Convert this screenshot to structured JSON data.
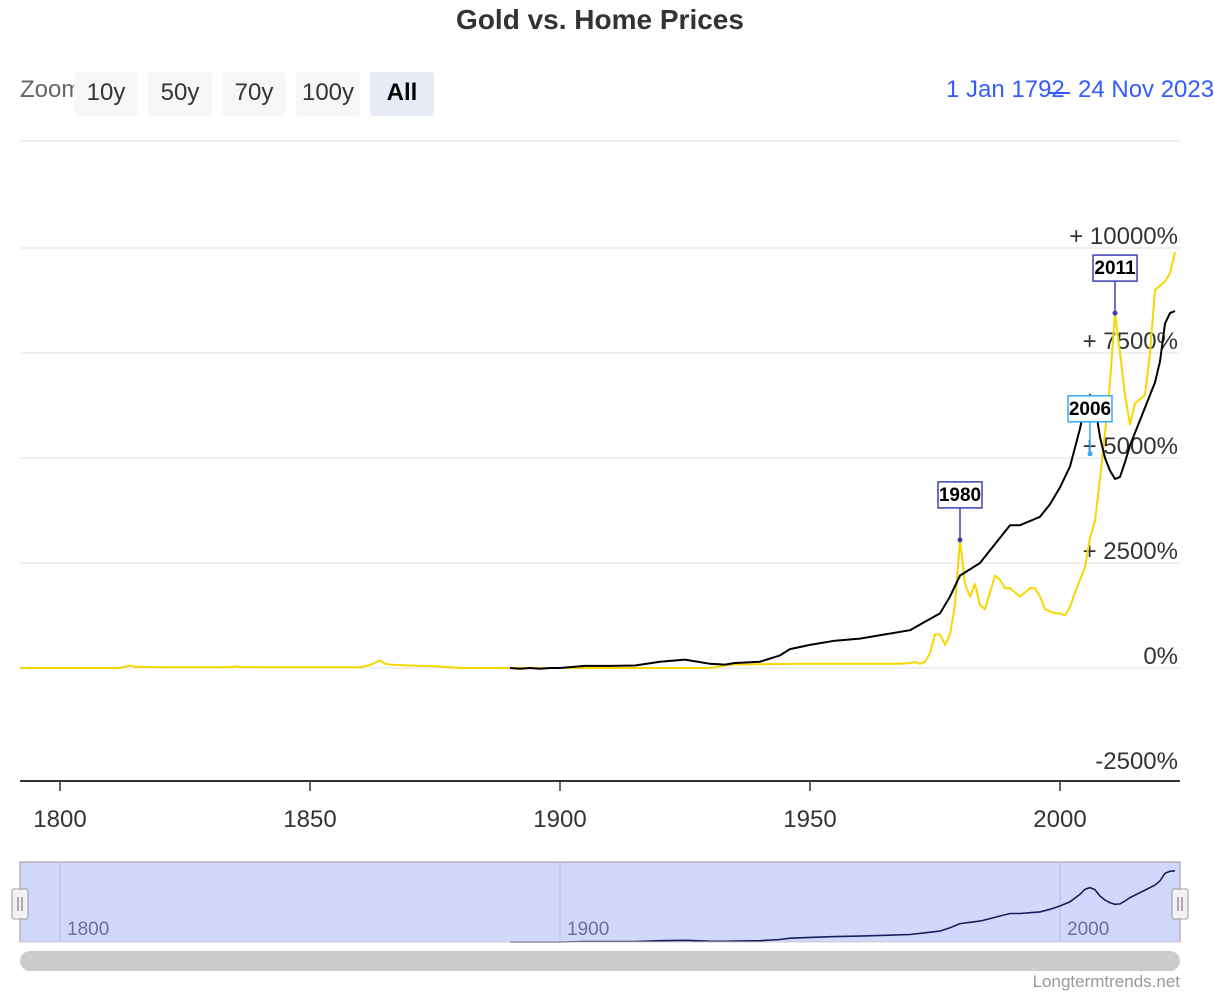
{
  "title": "Gold vs. Home Prices",
  "range_selector": {
    "label": "Zoom",
    "buttons": [
      "10y",
      "50y",
      "70y",
      "100y",
      "All"
    ],
    "selected": "All",
    "from": "1 Jan 1792",
    "to": "24 Nov 2023"
  },
  "credit": "Longtermtrends.net",
  "colors": {
    "gold_series": "#f5d800",
    "home_series": "#000000",
    "flag_dark": "#4040b0",
    "flag_light": "#33aaff",
    "navigator_fill": "#d2d8fc",
    "gridline": "#e0e0e0"
  },
  "chart_data": {
    "type": "line",
    "title": "Gold vs. Home Prices",
    "xlabel": "",
    "ylabel": "",
    "xlim": [
      1792,
      2024
    ],
    "ylim": [
      -2500,
      12500
    ],
    "grid": true,
    "legend": "none",
    "y_ticks": [
      -2500,
      0,
      2500,
      5000,
      7500,
      10000
    ],
    "y_tick_labels": [
      "-2500%",
      "0%",
      "+ 2500%",
      "+ 5000%",
      "+ 7500%",
      "+ 10000%"
    ],
    "x_ticks": [
      "1800",
      "1850",
      "1900",
      "1950",
      "2000"
    ],
    "series": [
      {
        "color": "#f5d800",
        "x": [
          1792,
          1812,
          1813,
          1814,
          1815,
          1820,
          1834,
          1835,
          1836,
          1840,
          1860,
          1862,
          1864,
          1865,
          1866,
          1870,
          1875,
          1879,
          1880,
          1900,
          1930,
          1934,
          1940,
          1950,
          1968,
          1970,
          1971,
          1972,
          1973,
          1974,
          1975,
          1976,
          1977,
          1978,
          1979,
          1980,
          1981,
          1982,
          1983,
          1984,
          1985,
          1986,
          1987,
          1988,
          1989,
          1990,
          1991,
          1992,
          1993,
          1994,
          1995,
          1996,
          1997,
          1998,
          1999,
          2000,
          2001,
          2002,
          2003,
          2004,
          2005,
          2006,
          2007,
          2008,
          2009,
          2010,
          2011,
          2012,
          2013,
          2014,
          2015,
          2016,
          2017,
          2018,
          2019,
          2020,
          2021,
          2022,
          2023
        ],
        "y": [
          0,
          0,
          30,
          60,
          30,
          20,
          20,
          40,
          25,
          20,
          20,
          70,
          180,
          100,
          80,
          60,
          40,
          10,
          0,
          0,
          0,
          80,
          90,
          100,
          100,
          120,
          140,
          100,
          150,
          350,
          800,
          800,
          550,
          800,
          1500,
          3050,
          2000,
          1700,
          2000,
          1500,
          1400,
          1800,
          2200,
          2100,
          1900,
          1900,
          1800,
          1700,
          1800,
          1900,
          1900,
          1700,
          1400,
          1350,
          1300,
          1300,
          1250,
          1450,
          1800,
          2100,
          2400,
          3100,
          3500,
          4500,
          5600,
          6800,
          8450,
          7500,
          6500,
          5800,
          6300,
          6400,
          6500,
          7500,
          9000,
          9100,
          9200,
          9400,
          9900
        ]
      },
      {
        "color": "#000000",
        "x": [
          1890,
          1892,
          1894,
          1896,
          1898,
          1900,
          1905,
          1910,
          1915,
          1920,
          1925,
          1930,
          1933,
          1935,
          1940,
          1944,
          1946,
          1950,
          1955,
          1960,
          1965,
          1970,
          1973,
          1976,
          1978,
          1980,
          1982,
          1984,
          1986,
          1988,
          1990,
          1992,
          1994,
          1996,
          1998,
          2000,
          2002,
          2004,
          2005,
          2006,
          2007,
          2008,
          2009,
          2010,
          2011,
          2012,
          2013,
          2014,
          2015,
          2016,
          2017,
          2018,
          2019,
          2020,
          2021,
          2022,
          2023
        ],
        "y": [
          0,
          -20,
          0,
          -20,
          0,
          0,
          50,
          50,
          60,
          150,
          200,
          100,
          80,
          120,
          150,
          300,
          450,
          550,
          650,
          700,
          800,
          900,
          1100,
          1300,
          1700,
          2200,
          2350,
          2500,
          2800,
          3100,
          3400,
          3400,
          3500,
          3600,
          3900,
          4300,
          4800,
          5700,
          6300,
          6500,
          6250,
          5500,
          5000,
          4700,
          4500,
          4550,
          4900,
          5300,
          5600,
          5900,
          6200,
          6500,
          6800,
          7300,
          8200,
          8450,
          8500
        ]
      }
    ],
    "flags": [
      {
        "label": "1980",
        "x": 1980,
        "y": 3050,
        "color": "#4040b0"
      },
      {
        "label": "2006",
        "x": 2006,
        "y": 5100,
        "color": "#33aaff"
      },
      {
        "label": "2011",
        "x": 2011,
        "y": 8450,
        "color": "#4040b0"
      }
    ],
    "navigator": {
      "x_ticks": [
        "1800",
        "1900",
        "2000"
      ]
    }
  }
}
